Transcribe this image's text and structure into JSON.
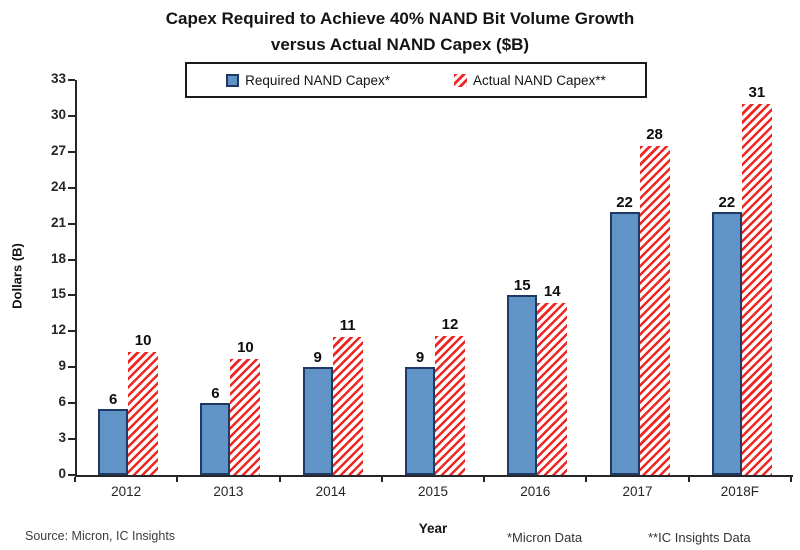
{
  "title": {
    "lines": [
      "Capex Required to Achieve 40% NAND Bit Volume Growth",
      "versus Actual NAND Capex ($B)"
    ]
  },
  "legend": [
    {
      "label": "Required NAND Capex*",
      "swatch": "blue-solid-square"
    },
    {
      "label": "Actual NAND Capex**",
      "swatch": "red-hatch-square"
    }
  ],
  "chart_data": {
    "type": "bar",
    "title": "Capex Required to Achieve 40% NAND Bit Volume Growth versus Actual NAND Capex ($B)",
    "categories": [
      "2012",
      "2013",
      "2014",
      "2015",
      "2016",
      "2017",
      "2018F"
    ],
    "series": [
      {
        "name": "Required NAND Capex*",
        "values": [
          6,
          6,
          9,
          9,
          15,
          22,
          22
        ],
        "display_heights": [
          5.5,
          6,
          9,
          9,
          15,
          22,
          22
        ],
        "style": "solid",
        "fill_color": "#6094C6",
        "border_color": "#1F3864"
      },
      {
        "name": "Actual NAND Capex**",
        "values": [
          10,
          10,
          11,
          12,
          14,
          28,
          31
        ],
        "display_heights": [
          10.3,
          9.7,
          11.5,
          11.6,
          14.4,
          27.5,
          31
        ],
        "style": "hatch-diagonal",
        "fill_color": "#EE2624",
        "hatch_background": "#FFFFFF"
      }
    ],
    "xlabel": "Year",
    "ylabel": "Dollars (B)",
    "ylim": [
      0,
      33
    ],
    "yticks": [
      0,
      3,
      6,
      9,
      12,
      15,
      18,
      21,
      24,
      27,
      30,
      33
    ],
    "grid": false,
    "legend_position": "top",
    "value_labels": true
  },
  "footer": {
    "source": "Source: Micron, IC Insights",
    "note1": "*Micron Data",
    "note2": "**IC Insights Data"
  }
}
